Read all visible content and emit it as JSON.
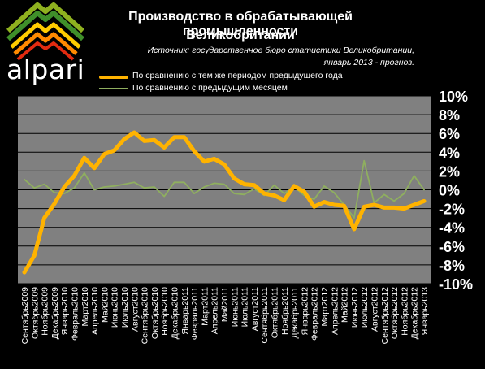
{
  "brand": {
    "name": "alpari"
  },
  "title_lines": [
    "Производство в обрабатывающей промышленности",
    "Великобритании"
  ],
  "source_lines": [
    "Источник: государственное  бюро статистики  Великобритании,",
    "январь 2013 - прогноз."
  ],
  "colors": {
    "background": "#000000",
    "plot_area": "#808080",
    "grid": "#000000",
    "series1": "#FFB300",
    "series2": "#8FAF5F",
    "text": "#FFFFFF"
  },
  "chart_data": {
    "type": "line",
    "title": "Производство в обрабатывающей промышленности Великобритании",
    "ylim": [
      -10,
      10
    ],
    "yticks": [
      10,
      8,
      6,
      4,
      2,
      0,
      -2,
      -4,
      -6,
      -8,
      -10
    ],
    "ytick_labels": [
      "10%",
      "8%",
      "6%",
      "4%",
      "2%",
      "0%",
      "-2%",
      "-4%",
      "-6%",
      "-8%",
      "-10%"
    ],
    "y_axis_position": "right",
    "grid": true,
    "legend_position": "top",
    "categories": [
      "Сентябрь2009",
      "Октябрь2009",
      "Ноябрь2009",
      "Декабрь2009",
      "Январь2010",
      "Февраль2010",
      "Март2010",
      "Апрель2010",
      "Май2010",
      "Июнь2010",
      "Июль2010",
      "Август2010",
      "Сентябрь2010",
      "Октябрь2010",
      "Ноябрь2010",
      "Декабрь2010",
      "Январь2011",
      "Февраль2011",
      "Март2011",
      "Апрель2011",
      "Май2011",
      "Июнь2011",
      "Июль2011",
      "Август2011",
      "Сентябрь2011",
      "Октябрь2011",
      "Ноябрь2011",
      "Декабрь2011",
      "Январь2012",
      "Февраль2012",
      "Март2012",
      "Апрель2012",
      "Май2012",
      "Июнь2012",
      "Июль2012",
      "Август2012",
      "Сентябрь2012",
      "Октябрь2012",
      "Ноябрь2012",
      "Декабрь2012",
      "Январь2013"
    ],
    "series": [
      {
        "name": "По сравнению с тем же периодом предыдущего года",
        "values": [
          -8.8,
          -7.0,
          -3.0,
          -1.5,
          0.3,
          1.5,
          3.4,
          2.3,
          3.8,
          4.2,
          5.4,
          6.1,
          5.2,
          5.3,
          4.5,
          5.6,
          5.6,
          4.1,
          3.0,
          3.3,
          2.7,
          1.2,
          0.6,
          0.5,
          -0.4,
          -0.6,
          -1.1,
          0.4,
          -0.2,
          -1.8,
          -1.3,
          -1.6,
          -1.7,
          -4.2,
          -1.8,
          -1.6,
          -1.9,
          -1.9,
          -2.0,
          -1.6,
          -1.2
        ]
      },
      {
        "name": "По сравнению с предыдущим месяцем",
        "values": [
          1.1,
          0.2,
          0.6,
          -0.3,
          -0.4,
          0.2,
          1.8,
          0.0,
          0.3,
          0.4,
          0.6,
          0.8,
          0.2,
          0.3,
          -0.7,
          0.8,
          0.8,
          -0.4,
          0.3,
          0.7,
          0.6,
          -0.4,
          -0.5,
          0.1,
          -0.6,
          0.5,
          -0.4,
          0.3,
          -0.6,
          -1.0,
          0.4,
          -0.3,
          -1.6,
          -3.0,
          3.1,
          -1.4,
          -0.5,
          -1.2,
          -0.4,
          1.5,
          0.0
        ]
      }
    ]
  }
}
